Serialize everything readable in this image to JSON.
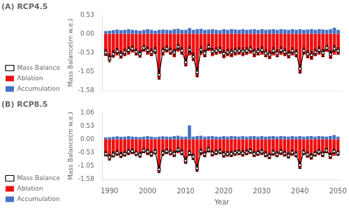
{
  "chart_data": [
    {
      "type": "bar",
      "title": "(A) RCP4.5",
      "x": [
        1989,
        1990,
        1991,
        1992,
        1993,
        1994,
        1995,
        1996,
        1997,
        1998,
        1999,
        2000,
        2001,
        2002,
        2003,
        2004,
        2005,
        2006,
        2007,
        2008,
        2009,
        2010,
        2011,
        2012,
        2013,
        2014,
        2015,
        2016,
        2017,
        2018,
        2019,
        2020,
        2021,
        2022,
        2023,
        2024,
        2025,
        2026,
        2027,
        2028,
        2029,
        2030,
        2031,
        2032,
        2033,
        2034,
        2035,
        2036,
        2037,
        2038,
        2039,
        2040,
        2041,
        2042,
        2043,
        2044,
        2045,
        2046,
        2047,
        2048,
        2049,
        2050
      ],
      "series": [
        {
          "name": "Ablation",
          "color": "#EE1111",
          "values": [
            -0.6,
            -0.75,
            -0.65,
            -0.6,
            -0.68,
            -0.62,
            -0.58,
            -0.52,
            -0.6,
            -0.65,
            -0.5,
            -0.58,
            -0.62,
            -0.55,
            -1.25,
            -0.6,
            -0.52,
            -0.58,
            -0.65,
            -0.5,
            -0.58,
            -0.9,
            -0.6,
            -0.75,
            -1.2,
            -0.58,
            -0.65,
            -0.48,
            -0.62,
            -0.58,
            -0.55,
            -0.68,
            -0.62,
            -0.65,
            -0.6,
            -0.58,
            -0.62,
            -0.58,
            -0.55,
            -0.65,
            -0.6,
            -0.58,
            -0.65,
            -0.7,
            -0.6,
            -0.65,
            -0.58,
            -0.62,
            -0.68,
            -0.6,
            -0.65,
            -1.1,
            -0.58,
            -0.68,
            -0.72,
            -0.62,
            -0.58,
            -0.65,
            -0.5,
            -0.7,
            -0.58,
            -0.58
          ]
        },
        {
          "name": "Accumulation",
          "color": "#4472C4",
          "values": [
            0.08,
            0.09,
            0.1,
            0.12,
            0.1,
            0.11,
            0.13,
            0.11,
            0.1,
            0.09,
            0.11,
            0.13,
            0.11,
            0.09,
            0.11,
            0.12,
            0.11,
            0.1,
            0.13,
            0.14,
            0.11,
            0.11,
            0.16,
            0.11,
            0.13,
            0.14,
            0.11,
            0.12,
            0.13,
            0.11,
            0.1,
            0.13,
            0.11,
            0.13,
            0.12,
            0.11,
            0.13,
            0.11,
            0.12,
            0.13,
            0.11,
            0.13,
            0.11,
            0.12,
            0.13,
            0.11,
            0.13,
            0.12,
            0.11,
            0.13,
            0.11,
            0.13,
            0.11,
            0.12,
            0.13,
            0.11,
            0.13,
            0.12,
            0.11,
            0.13,
            0.17,
            0.11
          ]
        },
        {
          "name": "Mass Balance",
          "type": "line",
          "color": "black",
          "marker": "square",
          "line_style": "solid",
          "values": [
            -0.52,
            -0.68,
            -0.56,
            -0.48,
            -0.58,
            -0.51,
            -0.45,
            -0.41,
            -0.5,
            -0.56,
            -0.39,
            -0.45,
            -0.51,
            -0.46,
            -1.14,
            -0.48,
            -0.41,
            -0.48,
            -0.52,
            -0.36,
            -0.47,
            -0.79,
            -0.44,
            -0.64,
            -1.07,
            -0.44,
            -0.54,
            -0.36,
            -0.49,
            -0.47,
            -0.45,
            -0.55,
            -0.51,
            -0.52,
            -0.48,
            -0.47,
            -0.49,
            -0.47,
            -0.43,
            -0.52,
            -0.49,
            -0.45,
            -0.54,
            -0.58,
            -0.47,
            -0.54,
            -0.45,
            -0.5,
            -0.57,
            -0.47,
            -0.54,
            -0.97,
            -0.47,
            -0.56,
            -0.59,
            -0.51,
            -0.45,
            -0.53,
            -0.39,
            -0.57,
            -0.41,
            -0.47
          ],
          "err": [
            0.08,
            0.1,
            0.09,
            0.08,
            0.09,
            0.08,
            0.08,
            0.07,
            0.08,
            0.09,
            0.07,
            0.08,
            0.09,
            0.08,
            0.12,
            0.08,
            0.07,
            0.08,
            0.09,
            0.07,
            0.08,
            0.1,
            0.08,
            0.1,
            0.12,
            0.08,
            0.09,
            0.07,
            0.08,
            0.08,
            0.08,
            0.09,
            0.08,
            0.09,
            0.08,
            0.08,
            0.09,
            0.08,
            0.07,
            0.09,
            0.08,
            0.08,
            0.09,
            0.09,
            0.08,
            0.09,
            0.08,
            0.08,
            0.09,
            0.08,
            0.09,
            0.12,
            0.08,
            0.09,
            0.09,
            0.08,
            0.08,
            0.09,
            0.07,
            0.09,
            0.08,
            0.08
          ]
        }
      ],
      "xlim": [
        1988,
        2051
      ],
      "xticks": [
        1990,
        2000,
        2010,
        2020,
        2030,
        2040,
        2050
      ],
      "ylim": [
        -1.58,
        0.53
      ],
      "yticks": [
        -1.58,
        -1.05,
        -0.53,
        {
          "value": 0,
          "label": "0.00"
        },
        0.53
      ],
      "ylabel": "Mass Balance(m w.e.)",
      "legend": "lower left",
      "grid": false,
      "tick_labels": "y"
    },
    {
      "type": "bar",
      "title": "(B) RCP8.5",
      "x": [
        1989,
        1990,
        1991,
        1992,
        1993,
        1994,
        1995,
        1996,
        1997,
        1998,
        1999,
        2000,
        2001,
        2002,
        2003,
        2004,
        2005,
        2006,
        2007,
        2008,
        2009,
        2010,
        2011,
        2012,
        2013,
        2014,
        2015,
        2016,
        2017,
        2018,
        2019,
        2020,
        2021,
        2022,
        2023,
        2024,
        2025,
        2026,
        2027,
        2028,
        2029,
        2030,
        2031,
        2032,
        2033,
        2034,
        2035,
        2036,
        2037,
        2038,
        2039,
        2040,
        2041,
        2042,
        2043,
        2044,
        2045,
        2046,
        2047,
        2048,
        2049,
        2050
      ],
      "series": [
        {
          "name": "Ablation",
          "color": "#EE1111",
          "values": [
            -0.65,
            -0.8,
            -0.7,
            -0.65,
            -0.72,
            -0.68,
            -0.62,
            -0.58,
            -0.65,
            -0.7,
            -0.55,
            -0.62,
            -0.68,
            -0.58,
            -1.3,
            -0.65,
            -0.58,
            -0.62,
            -0.7,
            -0.55,
            -0.62,
            -0.95,
            -0.65,
            -0.8,
            -1.25,
            -0.62,
            -0.7,
            -0.52,
            -0.68,
            -0.62,
            -0.58,
            -0.72,
            -0.68,
            -0.7,
            -0.65,
            -0.62,
            -0.68,
            -0.62,
            -0.58,
            -0.7,
            -0.65,
            -0.62,
            -0.7,
            -0.78,
            -0.65,
            -0.7,
            -0.62,
            -0.68,
            -0.75,
            -0.65,
            -0.7,
            -1.15,
            -0.62,
            -0.72,
            -0.8,
            -0.68,
            -0.62,
            -0.7,
            -0.55,
            -0.78,
            -0.65,
            -0.65
          ]
        },
        {
          "name": "Accumulation",
          "color": "#4472C4",
          "values": [
            0.08,
            0.09,
            0.1,
            0.12,
            0.1,
            0.11,
            0.13,
            0.11,
            0.1,
            0.09,
            0.11,
            0.13,
            0.11,
            0.09,
            0.11,
            0.12,
            0.11,
            0.1,
            0.13,
            0.14,
            0.11,
            0.11,
            0.55,
            0.11,
            0.13,
            0.14,
            0.11,
            0.12,
            0.13,
            0.11,
            0.1,
            0.13,
            0.11,
            0.13,
            0.12,
            0.11,
            0.13,
            0.11,
            0.12,
            0.13,
            0.11,
            0.13,
            0.11,
            0.12,
            0.13,
            0.11,
            0.13,
            0.12,
            0.11,
            0.13,
            0.11,
            0.13,
            0.11,
            0.12,
            0.13,
            0.11,
            0.13,
            0.12,
            0.11,
            0.13,
            0.17,
            0.11
          ]
        },
        {
          "name": "Mass Balance",
          "type": "line",
          "color": "black",
          "marker": "square",
          "line_style": "solid",
          "values": [
            -0.57,
            -0.71,
            -0.6,
            -0.53,
            -0.62,
            -0.57,
            -0.49,
            -0.47,
            -0.55,
            -0.61,
            -0.44,
            -0.49,
            -0.57,
            -0.49,
            -1.19,
            -0.53,
            -0.47,
            -0.52,
            -0.57,
            -0.41,
            -0.51,
            -0.84,
            -0.54,
            -0.69,
            -1.14,
            -0.48,
            -0.59,
            -0.4,
            -0.55,
            -0.51,
            -0.48,
            -0.59,
            -0.57,
            -0.57,
            -0.53,
            -0.51,
            -0.55,
            -0.51,
            -0.46,
            -0.57,
            -0.54,
            -0.49,
            -0.59,
            -0.66,
            -0.52,
            -0.59,
            -0.49,
            -0.56,
            -0.64,
            -0.52,
            -0.59,
            -1.02,
            -0.51,
            -0.6,
            -0.67,
            -0.57,
            -0.49,
            -0.58,
            -0.44,
            -0.65,
            -0.48,
            -0.54
          ],
          "err": [
            0.09,
            0.11,
            0.1,
            0.09,
            0.1,
            0.09,
            0.09,
            0.08,
            0.09,
            0.1,
            0.08,
            0.09,
            0.1,
            0.09,
            0.13,
            0.09,
            0.08,
            0.09,
            0.1,
            0.08,
            0.09,
            0.11,
            0.09,
            0.11,
            0.13,
            0.09,
            0.1,
            0.08,
            0.09,
            0.09,
            0.09,
            0.1,
            0.09,
            0.1,
            0.09,
            0.09,
            0.1,
            0.09,
            0.08,
            0.1,
            0.09,
            0.09,
            0.1,
            0.1,
            0.09,
            0.1,
            0.09,
            0.09,
            0.1,
            0.09,
            0.1,
            0.13,
            0.09,
            0.1,
            0.1,
            0.09,
            0.09,
            0.1,
            0.08,
            0.1,
            0.09,
            0.09
          ]
        }
      ],
      "xlim": [
        1988,
        2051
      ],
      "xticks": [
        1990,
        2000,
        2010,
        2020,
        2030,
        2040,
        2050
      ],
      "ylim": [
        -1.58,
        1.06
      ],
      "yticks": [
        -1.58,
        -1.05,
        -0.53,
        {
          "value": 0,
          "label": "0.00"
        },
        0.53,
        1.06
      ],
      "xlabel": "Year",
      "ylabel": "Mass Balance(m w.e.)",
      "legend": "lower left",
      "grid": false
    }
  ]
}
